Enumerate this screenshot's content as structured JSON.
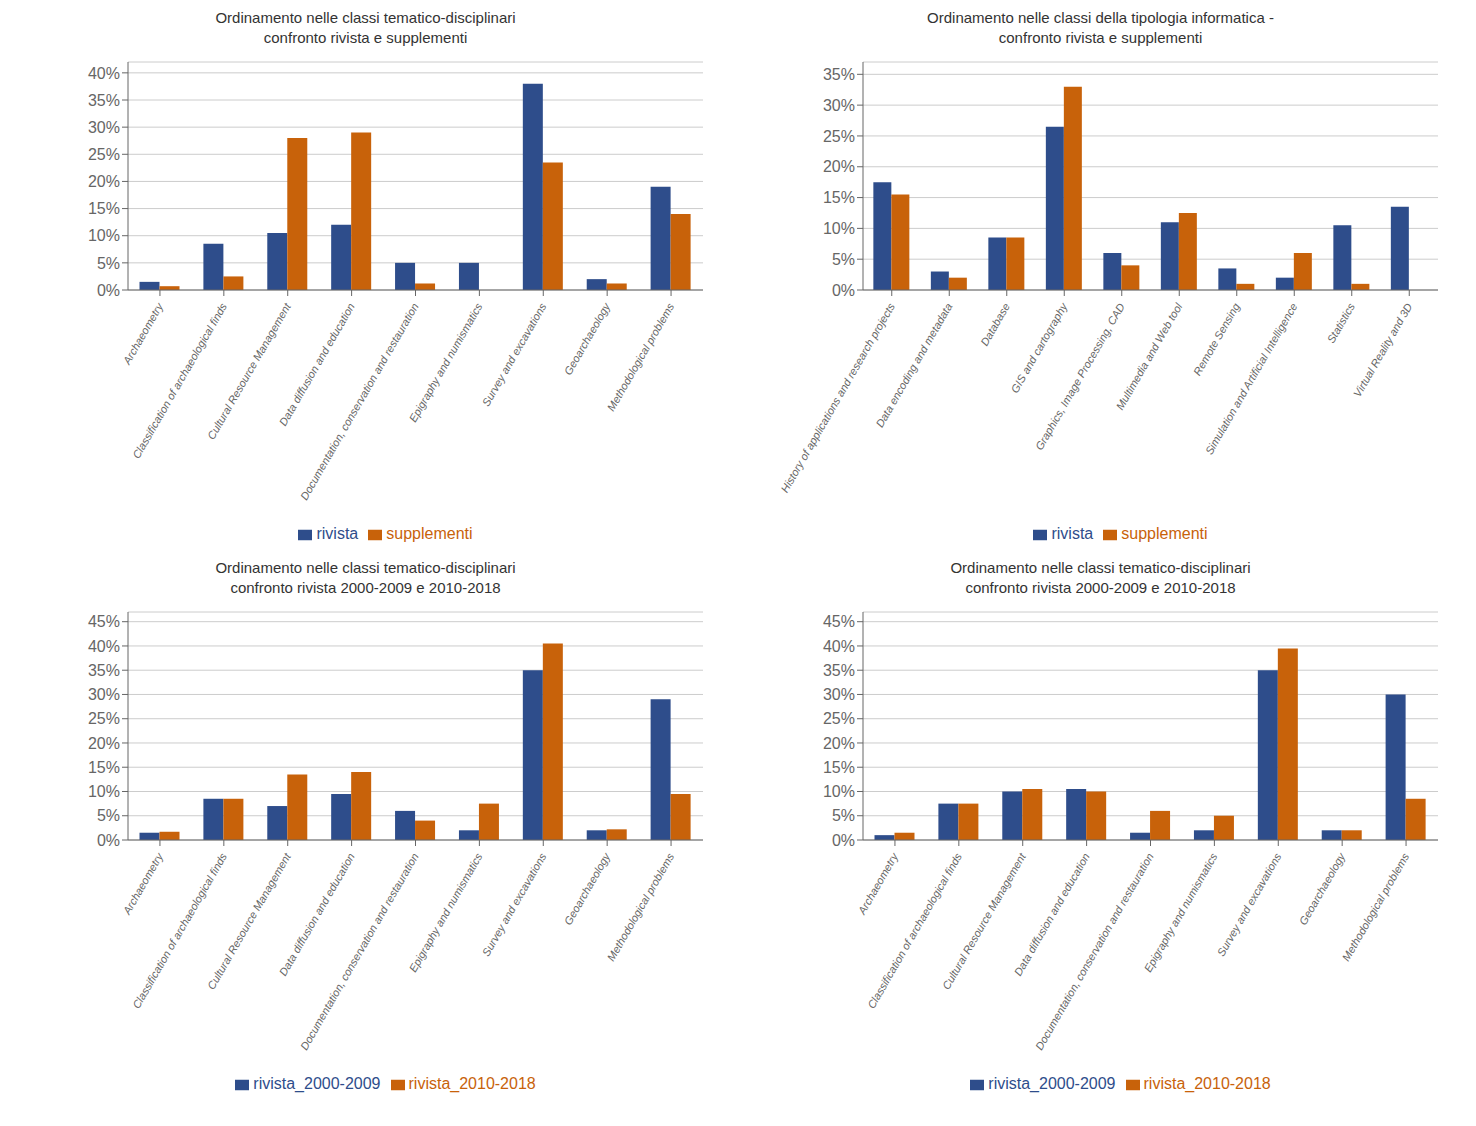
{
  "chart_data": [
    {
      "type": "bar",
      "title": "Ordinamento nelle classi tematico-disciplinari\nconfronto rivista e supplementi",
      "categories": [
        "Archaeometry",
        "Classification of archaeological finds",
        "Cultural Resource Management",
        "Data diffusion and education",
        "Documentation, conservation and restauration",
        "Epigraphy and numismatics",
        "Survey and excavations",
        "Geoarchaeology",
        "Methodological problems"
      ],
      "series": [
        {
          "name": "rivista",
          "color": "#2E4D8B",
          "values": [
            1.5,
            8.5,
            10.5,
            12.0,
            5.0,
            5.0,
            38.0,
            2.0,
            19.0
          ]
        },
        {
          "name": "supplementi",
          "color": "#C8620A",
          "values": [
            0.7,
            2.5,
            28.0,
            29.0,
            1.2,
            0.0,
            23.5,
            1.2,
            14.0
          ]
        }
      ],
      "ylim": [
        0,
        42
      ],
      "yticks": [
        {
          "value": 0,
          "label": "0%"
        },
        {
          "value": 5,
          "label": "5%"
        },
        {
          "value": 10,
          "label": "10%"
        },
        {
          "value": 15,
          "label": "15%"
        },
        {
          "value": 20,
          "label": "20%"
        },
        {
          "value": 25,
          "label": "25%"
        },
        {
          "value": 30,
          "label": "30%"
        },
        {
          "value": 35,
          "label": "35%"
        },
        {
          "value": 40,
          "label": "40%"
        }
      ],
      "grid": true,
      "legend": "bottom"
    },
    {
      "type": "bar",
      "title": "Ordinamento nelle classi della tipologia informatica -\nconfronto rivista e supplementi",
      "categories": [
        "History of applications and research projects",
        "Data encoding and metadata",
        "Database",
        "GIS and cartography",
        "Graphics, Image Processing, CAD",
        "Multimedia and Web tool",
        "Remote Sensing",
        "Simulation and Artificial Intelligence",
        "Statistics",
        "Virtual Reality and 3D"
      ],
      "series": [
        {
          "name": "rivista",
          "color": "#2E4D8B",
          "values": [
            17.5,
            3.0,
            8.5,
            26.5,
            6.0,
            11.0,
            3.5,
            2.0,
            10.5,
            13.5
          ]
        },
        {
          "name": "supplementi",
          "color": "#C8620A",
          "values": [
            15.5,
            2.0,
            8.5,
            33.0,
            4.0,
            12.5,
            1.0,
            6.0,
            1.0,
            0.0
          ]
        }
      ],
      "ylim": [
        0,
        37
      ],
      "yticks": [
        {
          "value": 0,
          "label": "0%"
        },
        {
          "value": 5,
          "label": "5%"
        },
        {
          "value": 10,
          "label": "10%"
        },
        {
          "value": 15,
          "label": "15%"
        },
        {
          "value": 20,
          "label": "20%"
        },
        {
          "value": 25,
          "label": "25%"
        },
        {
          "value": 30,
          "label": "30%"
        },
        {
          "value": 35,
          "label": "35%"
        }
      ],
      "grid": true,
      "legend": "bottom"
    },
    {
      "type": "bar",
      "title": "Ordinamento nelle classi tematico-disciplinari\nconfronto rivista 2000-2009 e 2010-2018",
      "categories": [
        "Archaeometry",
        "Classification of archaeological finds",
        "Cultural Resource Management",
        "Data diffusion and education",
        "Documentation, conservation and restauration",
        "Epigraphy and numismatics",
        "Survey and excavations",
        "Geoarchaeology",
        "Methodological problems"
      ],
      "series": [
        {
          "name": "rivista_2000-2009",
          "color": "#2E4D8B",
          "values": [
            1.5,
            8.5,
            7.0,
            9.5,
            6.0,
            2.0,
            35.0,
            2.0,
            29.0
          ]
        },
        {
          "name": "rivista_2010-2018",
          "color": "#C8620A",
          "values": [
            1.7,
            8.5,
            13.5,
            14.0,
            4.0,
            7.5,
            40.5,
            2.2,
            9.5
          ]
        }
      ],
      "ylim": [
        0,
        47
      ],
      "yticks": [
        {
          "value": 0,
          "label": "0%"
        },
        {
          "value": 5,
          "label": "5%"
        },
        {
          "value": 10,
          "label": "10%"
        },
        {
          "value": 15,
          "label": "15%"
        },
        {
          "value": 20,
          "label": "20%"
        },
        {
          "value": 25,
          "label": "25%"
        },
        {
          "value": 30,
          "label": "30%"
        },
        {
          "value": 35,
          "label": "35%"
        },
        {
          "value": 40,
          "label": "40%"
        },
        {
          "value": 45,
          "label": "45%"
        }
      ],
      "grid": true,
      "legend": "bottom"
    },
    {
      "type": "bar",
      "title": "Ordinamento nelle classi tematico-disciplinari\nconfronto rivista 2000-2009 e 2010-2018",
      "categories": [
        "Archaeometry",
        "Classification of archaeological finds",
        "Cultural Resource Management",
        "Data diffusion and education",
        "Documentation, conservation and restauration",
        "Epigraphy and numismatics",
        "Survey and excavations",
        "Geoarchaeology",
        "Methodological problems"
      ],
      "series": [
        {
          "name": "rivista_2000-2009",
          "color": "#2E4D8B",
          "values": [
            1.0,
            7.5,
            10.0,
            10.5,
            1.5,
            2.0,
            35.0,
            2.0,
            30.0
          ]
        },
        {
          "name": "rivista_2010-2018",
          "color": "#C8620A",
          "values": [
            1.5,
            7.5,
            10.5,
            10.0,
            6.0,
            5.0,
            39.5,
            2.0,
            8.5
          ]
        }
      ],
      "ylim": [
        0,
        47
      ],
      "yticks": [
        {
          "value": 0,
          "label": "0%"
        },
        {
          "value": 5,
          "label": "5%"
        },
        {
          "value": 10,
          "label": "10%"
        },
        {
          "value": 15,
          "label": "15%"
        },
        {
          "value": 20,
          "label": "20%"
        },
        {
          "value": 25,
          "label": "25%"
        },
        {
          "value": 30,
          "label": "30%"
        },
        {
          "value": 35,
          "label": "35%"
        },
        {
          "value": 40,
          "label": "40%"
        },
        {
          "value": 45,
          "label": "45%"
        }
      ],
      "grid": true,
      "legend": "bottom"
    }
  ]
}
